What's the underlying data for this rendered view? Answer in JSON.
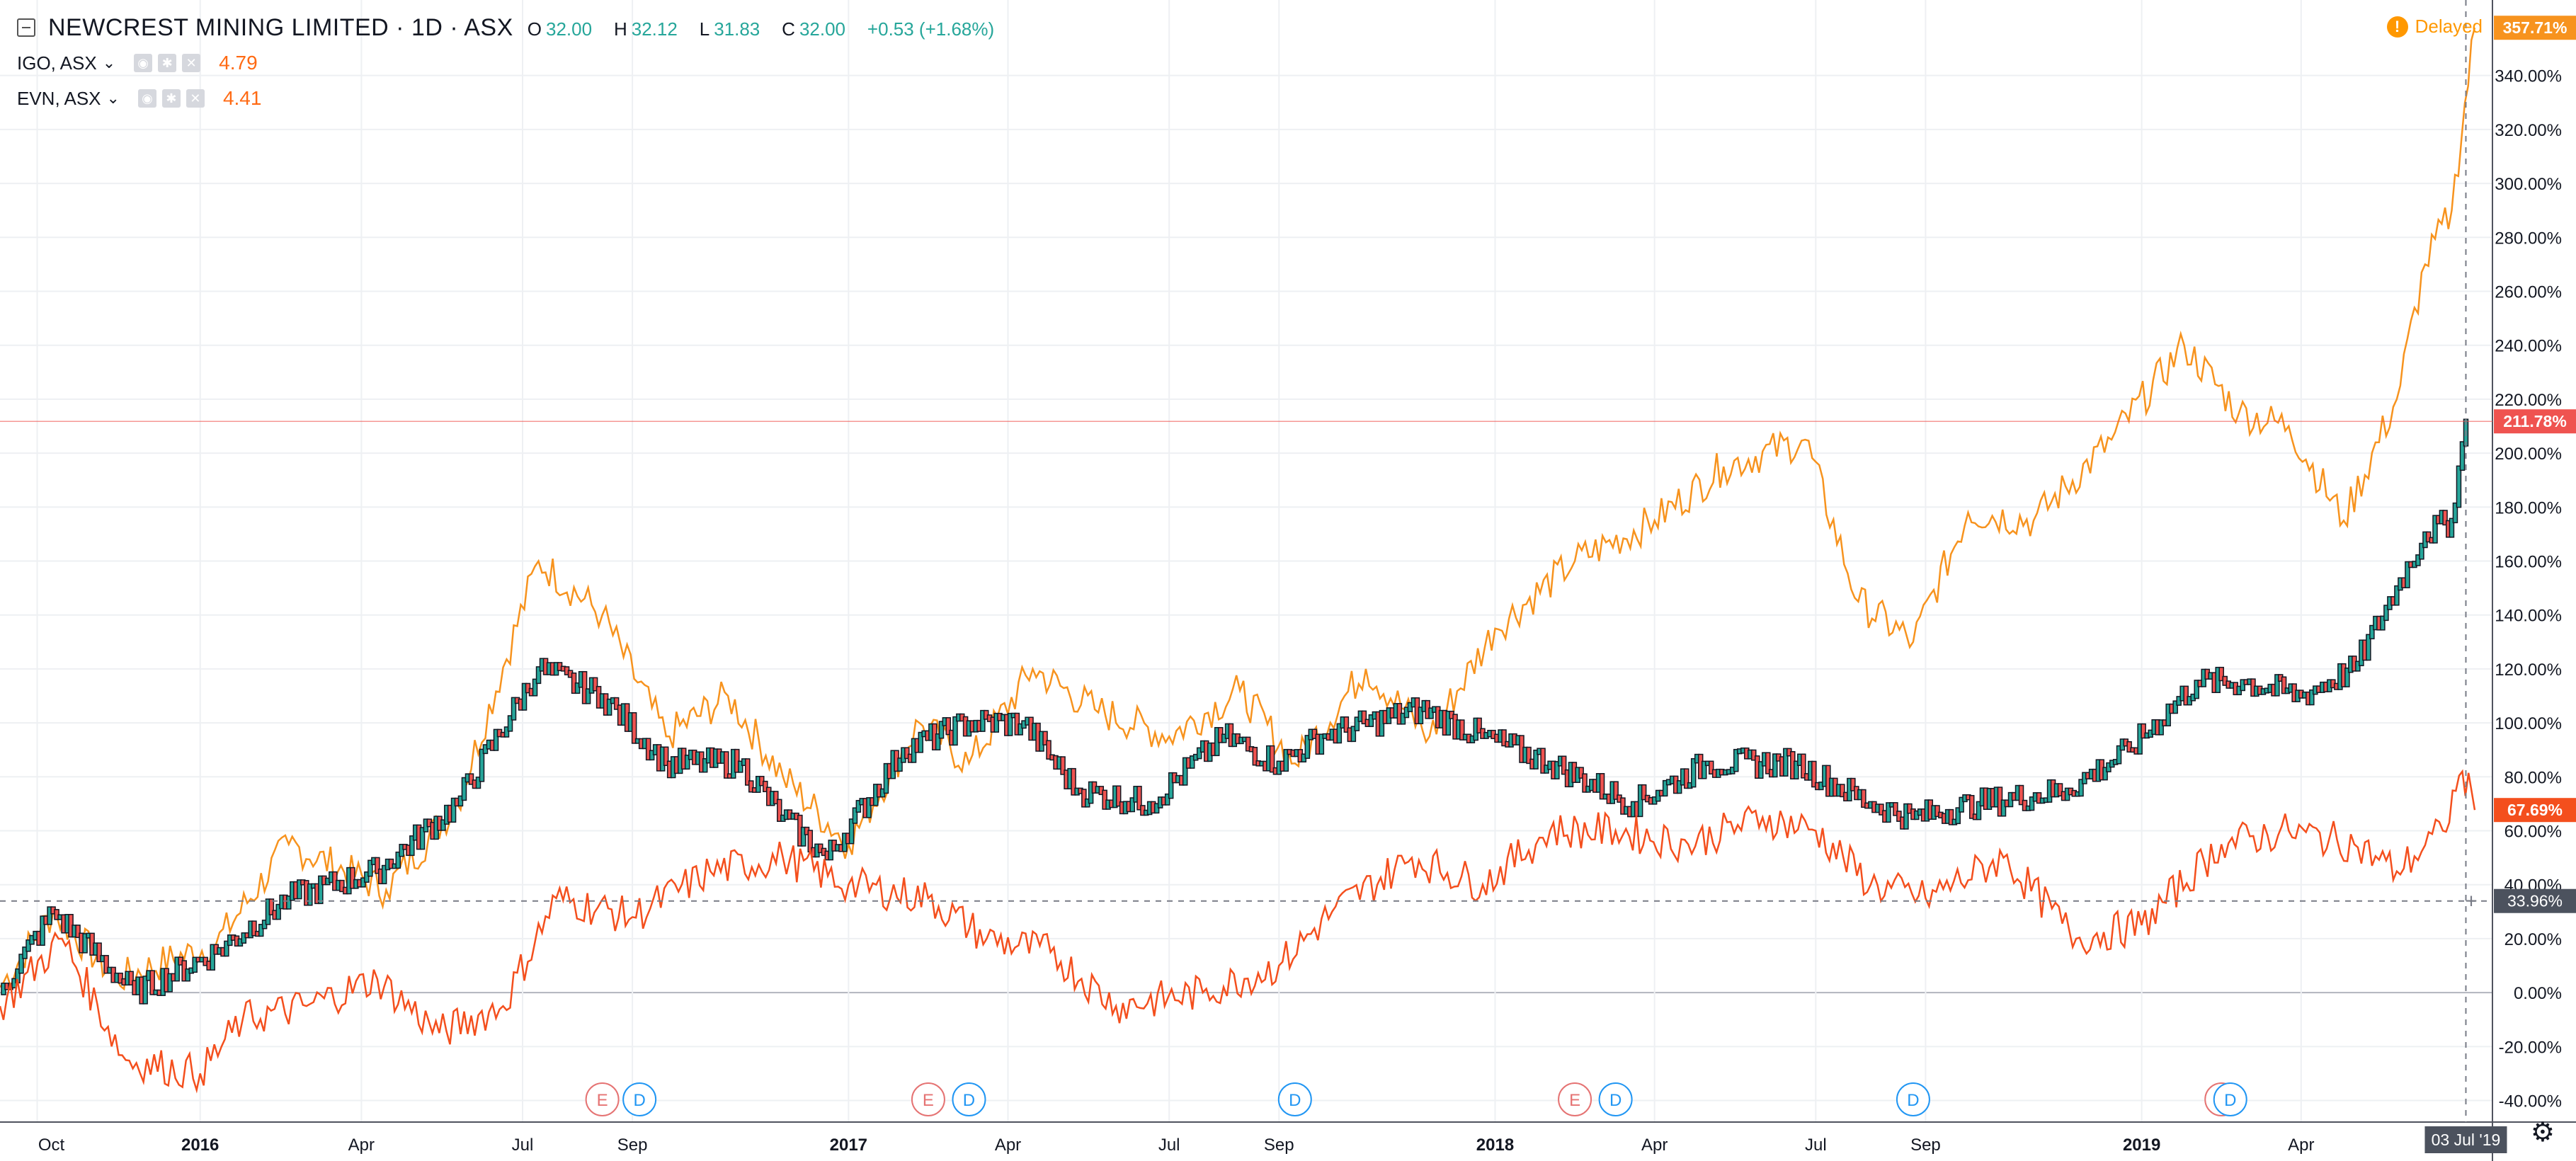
{
  "header": {
    "title": "NEWCREST MINING LIMITED · 1D · ASX",
    "ohlc": {
      "o_label": "O",
      "o_value": "32.00",
      "h_label": "H",
      "h_value": "32.12",
      "l_label": "L",
      "l_value": "31.83",
      "c_label": "C",
      "c_value": "32.00",
      "change": "+0.53 (+1.68%)"
    },
    "compare": [
      {
        "name": "IGO, ASX",
        "value": "4.79"
      },
      {
        "name": "EVN, ASX",
        "value": "4.41"
      }
    ],
    "delayed": "Delayed",
    "chevron": "⌄"
  },
  "icons": {
    "collapse": "minus-square-icon",
    "warning": "warning-icon",
    "settings": "gear-icon"
  },
  "chart_data": {
    "type": "line",
    "y_unit": "%",
    "ylim": [
      -48,
      368
    ],
    "yticks": [
      "-40.00%",
      "-20.00%",
      "0.00%",
      "20.00%",
      "40.00%",
      "60.00%",
      "80.00%",
      "100.00%",
      "120.00%",
      "140.00%",
      "160.00%",
      "180.00%",
      "200.00%",
      "220.00%",
      "240.00%",
      "260.00%",
      "280.00%",
      "300.00%",
      "320.00%",
      "340.00%"
    ],
    "xticks": [
      "Oct",
      "2016",
      "Apr",
      "Jul",
      "Sep",
      "2017",
      "Apr",
      "Jul",
      "Sep",
      "2018",
      "Apr",
      "Jul",
      "Sep",
      "2019",
      "Apr"
    ],
    "series": [
      {
        "name": "IGO, ASX",
        "color": "#f7931e",
        "x": [
          "2015-09-10",
          "2015-10-10",
          "2015-11-15",
          "2016-01-10",
          "2016-02-20",
          "2016-04-15",
          "2016-05-25",
          "2016-07-10",
          "2016-08-15",
          "2016-09-20",
          "2016-10-25",
          "2016-11-25",
          "2017-01-01",
          "2017-02-10",
          "2017-03-10",
          "2017-04-15",
          "2017-05-20",
          "2017-07-01",
          "2017-08-10",
          "2017-09-10",
          "2017-10-20",
          "2017-11-25",
          "2018-01-01",
          "2018-02-15",
          "2018-04-01",
          "2018-05-10",
          "2018-06-25",
          "2018-07-25",
          "2018-08-25",
          "2018-09-25",
          "2018-11-01",
          "2018-12-15",
          "2019-01-25",
          "2019-02-25",
          "2019-03-25",
          "2019-04-25",
          "2019-05-25",
          "2019-06-10",
          "2019-06-25",
          "2019-07-08"
        ],
        "values": [
          2,
          30,
          5,
          18,
          55,
          38,
          70,
          160,
          140,
          95,
          110,
          80,
          55,
          100,
          85,
          120,
          105,
          95,
          112,
          85,
          120,
          95,
          135,
          160,
          175,
          195,
          205,
          145,
          130,
          178,
          175,
          205,
          240,
          215,
          210,
          175,
          220,
          270,
          290,
          357.71
        ],
        "last_label": "357.71%"
      },
      {
        "name": "NEWCREST MINING LIMITED",
        "color": "#26a69a",
        "x": [
          "2015-09-10",
          "2015-10-10",
          "2015-11-25",
          "2016-01-10",
          "2016-02-20",
          "2016-04-10",
          "2016-05-25",
          "2016-07-10",
          "2016-08-15",
          "2016-09-20",
          "2016-11-01",
          "2016-11-25",
          "2016-12-20",
          "2017-02-01",
          "2017-03-10",
          "2017-04-10",
          "2017-05-10",
          "2017-06-20",
          "2017-08-01",
          "2017-09-01",
          "2017-09-25",
          "2017-11-20",
          "2017-12-25",
          "2018-02-01",
          "2018-03-20",
          "2018-05-01",
          "2018-06-20",
          "2018-08-01",
          "2018-08-25",
          "2018-10-01",
          "2018-11-20",
          "2018-12-25",
          "2019-02-01",
          "2019-03-01",
          "2019-04-01",
          "2019-05-01",
          "2019-05-25",
          "2019-06-10",
          "2019-06-25",
          "2019-07-03"
        ],
        "values": [
          0,
          30,
          0,
          15,
          35,
          45,
          70,
          120,
          110,
          85,
          85,
          65,
          50,
          90,
          100,
          100,
          75,
          70,
          95,
          85,
          95,
          105,
          95,
          85,
          70,
          85,
          85,
          70,
          65,
          70,
          75,
          90,
          115,
          115,
          110,
          120,
          150,
          170,
          175,
          211.78
        ],
        "last_label": "211.78%"
      },
      {
        "name": "EVN, ASX",
        "color": "#f44f1d",
        "x": [
          "2015-09-10",
          "2015-10-15",
          "2015-11-20",
          "2016-01-01",
          "2016-01-25",
          "2016-03-01",
          "2016-04-10",
          "2016-05-15",
          "2016-06-20",
          "2016-07-20",
          "2016-09-01",
          "2016-10-15",
          "2016-11-25",
          "2017-01-01",
          "2017-02-15",
          "2017-03-20",
          "2017-04-25",
          "2017-06-01",
          "2017-07-20",
          "2017-09-01",
          "2017-10-01",
          "2017-11-15",
          "2017-12-25",
          "2018-02-01",
          "2018-03-10",
          "2018-04-20",
          "2018-06-01",
          "2018-07-01",
          "2018-08-01",
          "2018-09-01",
          "2018-10-15",
          "2018-11-25",
          "2019-01-01",
          "2019-02-15",
          "2019-03-25",
          "2019-05-01",
          "2019-05-25",
          "2019-06-20",
          "2019-07-01",
          "2019-07-08"
        ],
        "values": [
          -5,
          20,
          -25,
          -30,
          -10,
          -5,
          5,
          -15,
          -5,
          35,
          28,
          45,
          50,
          40,
          35,
          20,
          15,
          -5,
          0,
          10,
          30,
          50,
          40,
          60,
          60,
          55,
          65,
          60,
          40,
          35,
          50,
          20,
          25,
          55,
          60,
          55,
          45,
          60,
          82,
          67.69
        ],
        "last_label": "67.69%"
      }
    ],
    "crosshair": {
      "x": "2019-07-03",
      "x_label": "03 Jul '19",
      "y": 33.96,
      "y_label": "33.96%"
    },
    "events": [
      {
        "label": "E",
        "x": "2016-08-15",
        "kind": "earnings"
      },
      {
        "label": "D",
        "x": "2016-09-05",
        "kind": "dividend"
      },
      {
        "label": "E",
        "x": "2017-02-15",
        "kind": "earnings"
      },
      {
        "label": "D",
        "x": "2017-03-10",
        "kind": "dividend"
      },
      {
        "label": "D",
        "x": "2017-09-10",
        "kind": "dividend"
      },
      {
        "label": "E",
        "x": "2018-02-15",
        "kind": "earnings"
      },
      {
        "label": "D",
        "x": "2018-03-10",
        "kind": "dividend"
      },
      {
        "label": "D",
        "x": "2018-08-25",
        "kind": "dividend"
      },
      {
        "label": "E",
        "x": "2019-02-15",
        "kind": "earnings"
      },
      {
        "label": "D",
        "x": "2019-02-20",
        "kind": "dividend"
      }
    ]
  }
}
